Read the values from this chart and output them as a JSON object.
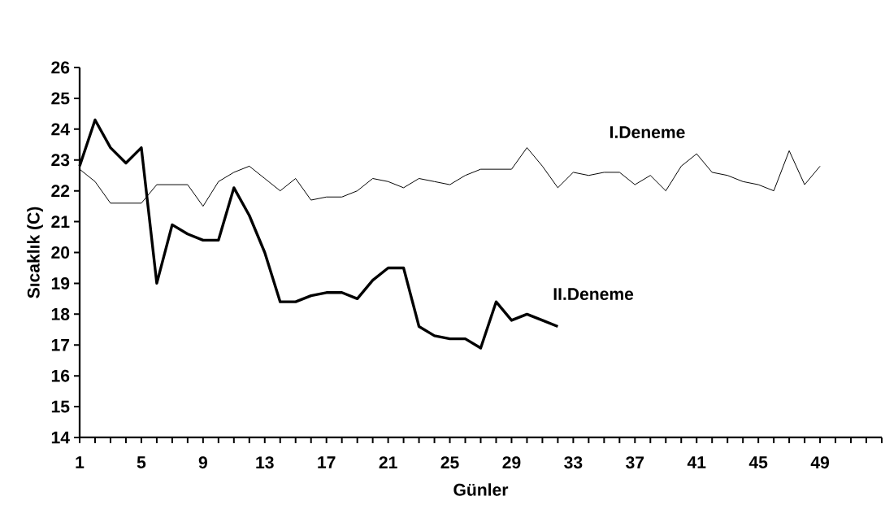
{
  "chart_data": {
    "type": "line",
    "xlabel": "Günler",
    "ylabel": "Sıcaklık (C)",
    "xlim": [
      1,
      53
    ],
    "ylim": [
      14,
      26
    ],
    "yticks": [
      14,
      15,
      16,
      17,
      18,
      19,
      20,
      21,
      22,
      23,
      24,
      25,
      26
    ],
    "xticks": [
      1,
      {
        "value": 2,
        "label": null
      },
      {
        "value": 3,
        "label": null
      },
      {
        "value": 4,
        "label": null
      },
      5,
      {
        "value": 6,
        "label": null
      },
      {
        "value": 7,
        "label": null
      },
      {
        "value": 8,
        "label": null
      },
      9,
      {
        "value": 10,
        "label": null
      },
      {
        "value": 11,
        "label": null
      },
      {
        "value": 12,
        "label": null
      },
      13,
      {
        "value": 14,
        "label": null
      },
      {
        "value": 15,
        "label": null
      },
      {
        "value": 16,
        "label": null
      },
      17,
      {
        "value": 18,
        "label": null
      },
      {
        "value": 19,
        "label": null
      },
      {
        "value": 20,
        "label": null
      },
      21,
      {
        "value": 22,
        "label": null
      },
      {
        "value": 23,
        "label": null
      },
      {
        "value": 24,
        "label": null
      },
      25,
      {
        "value": 26,
        "label": null
      },
      {
        "value": 27,
        "label": null
      },
      {
        "value": 28,
        "label": null
      },
      29,
      {
        "value": 30,
        "label": null
      },
      {
        "value": 31,
        "label": null
      },
      {
        "value": 32,
        "label": null
      },
      33,
      {
        "value": 34,
        "label": null
      },
      {
        "value": 35,
        "label": null
      },
      {
        "value": 36,
        "label": null
      },
      37,
      {
        "value": 38,
        "label": null
      },
      {
        "value": 39,
        "label": null
      },
      {
        "value": 40,
        "label": null
      },
      41,
      {
        "value": 42,
        "label": null
      },
      {
        "value": 43,
        "label": null
      },
      {
        "value": 44,
        "label": null
      },
      45,
      {
        "value": 46,
        "label": null
      },
      {
        "value": 47,
        "label": null
      },
      {
        "value": 48,
        "label": null
      },
      49,
      {
        "value": 50,
        "label": null
      },
      {
        "value": 51,
        "label": null
      },
      {
        "value": 52,
        "label": null
      },
      {
        "value": 53,
        "label": null
      }
    ],
    "grid": false,
    "legend": false,
    "marker": "none",
    "line_style": "solid",
    "series": [
      {
        "name": "I.Deneme",
        "color": "#000000",
        "x": [
          1,
          2,
          3,
          4,
          5,
          6,
          7,
          8,
          9,
          10,
          11,
          12,
          13,
          14,
          15,
          16,
          17,
          18,
          19,
          20,
          21,
          22,
          23,
          24,
          25,
          26,
          27,
          28,
          29,
          30,
          31,
          32,
          33,
          34,
          35,
          36,
          37,
          38,
          39,
          40,
          41,
          42,
          43,
          44,
          45,
          46,
          47,
          48,
          49
        ],
        "values": [
          22.7,
          22.3,
          21.6,
          21.6,
          21.6,
          22.2,
          22.2,
          22.2,
          21.5,
          22.3,
          22.6,
          22.8,
          22.4,
          22.0,
          22.4,
          21.7,
          21.8,
          21.8,
          22.0,
          22.4,
          22.3,
          22.1,
          22.4,
          22.3,
          22.2,
          22.5,
          22.7,
          22.7,
          22.7,
          23.4,
          22.8,
          22.1,
          22.6,
          22.5,
          22.6,
          22.6,
          22.2,
          22.5,
          22.0,
          22.8,
          23.2,
          22.6,
          22.5,
          22.3,
          22.2,
          22.0,
          23.3,
          22.2,
          22.8
        ]
      },
      {
        "name": "II.Deneme",
        "color": "#000000",
        "x": [
          1,
          2,
          3,
          4,
          5,
          6,
          7,
          8,
          9,
          10,
          11,
          12,
          13,
          14,
          15,
          16,
          17,
          18,
          19,
          20,
          21,
          22,
          23,
          24,
          25,
          26,
          27,
          28,
          29,
          30,
          31,
          32
        ],
        "values": [
          22.8,
          24.3,
          23.4,
          22.9,
          23.4,
          19.0,
          20.9,
          20.6,
          20.4,
          20.4,
          22.1,
          21.2,
          20.0,
          18.4,
          18.4,
          18.6,
          18.7,
          18.7,
          18.5,
          19.1,
          19.5,
          19.5,
          17.6,
          17.3,
          17.2,
          17.2,
          16.9,
          18.4,
          17.8,
          18.0,
          17.8,
          17.6
        ]
      }
    ]
  }
}
